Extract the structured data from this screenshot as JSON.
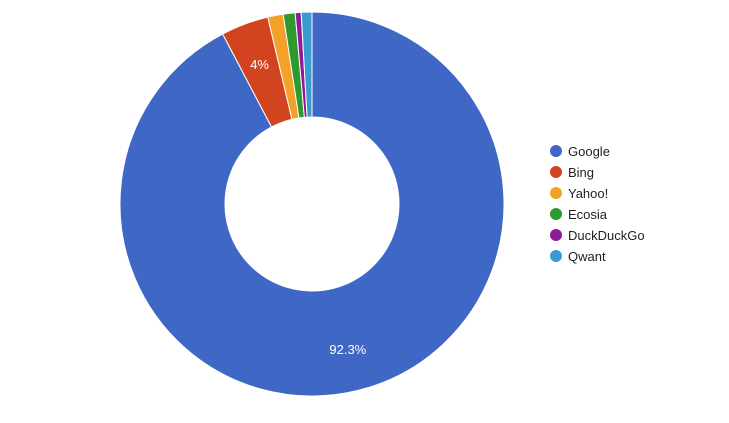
{
  "chart_data": {
    "type": "pie",
    "donut": true,
    "legend_position": "right",
    "categories": [
      "Google",
      "Bing",
      "Yahoo!",
      "Ecosia",
      "DuckDuckGo",
      "Qwant"
    ],
    "values": [
      92.3,
      4,
      1.3,
      1,
      0.5,
      0.9
    ],
    "data_labels": [
      "92.3%",
      "4%",
      "",
      "",
      "",
      ""
    ],
    "colors": [
      "#3f67c6",
      "#d2441f",
      "#f4a12a",
      "#2e9a2e",
      "#8e1c9a",
      "#3b9ad0"
    ]
  }
}
